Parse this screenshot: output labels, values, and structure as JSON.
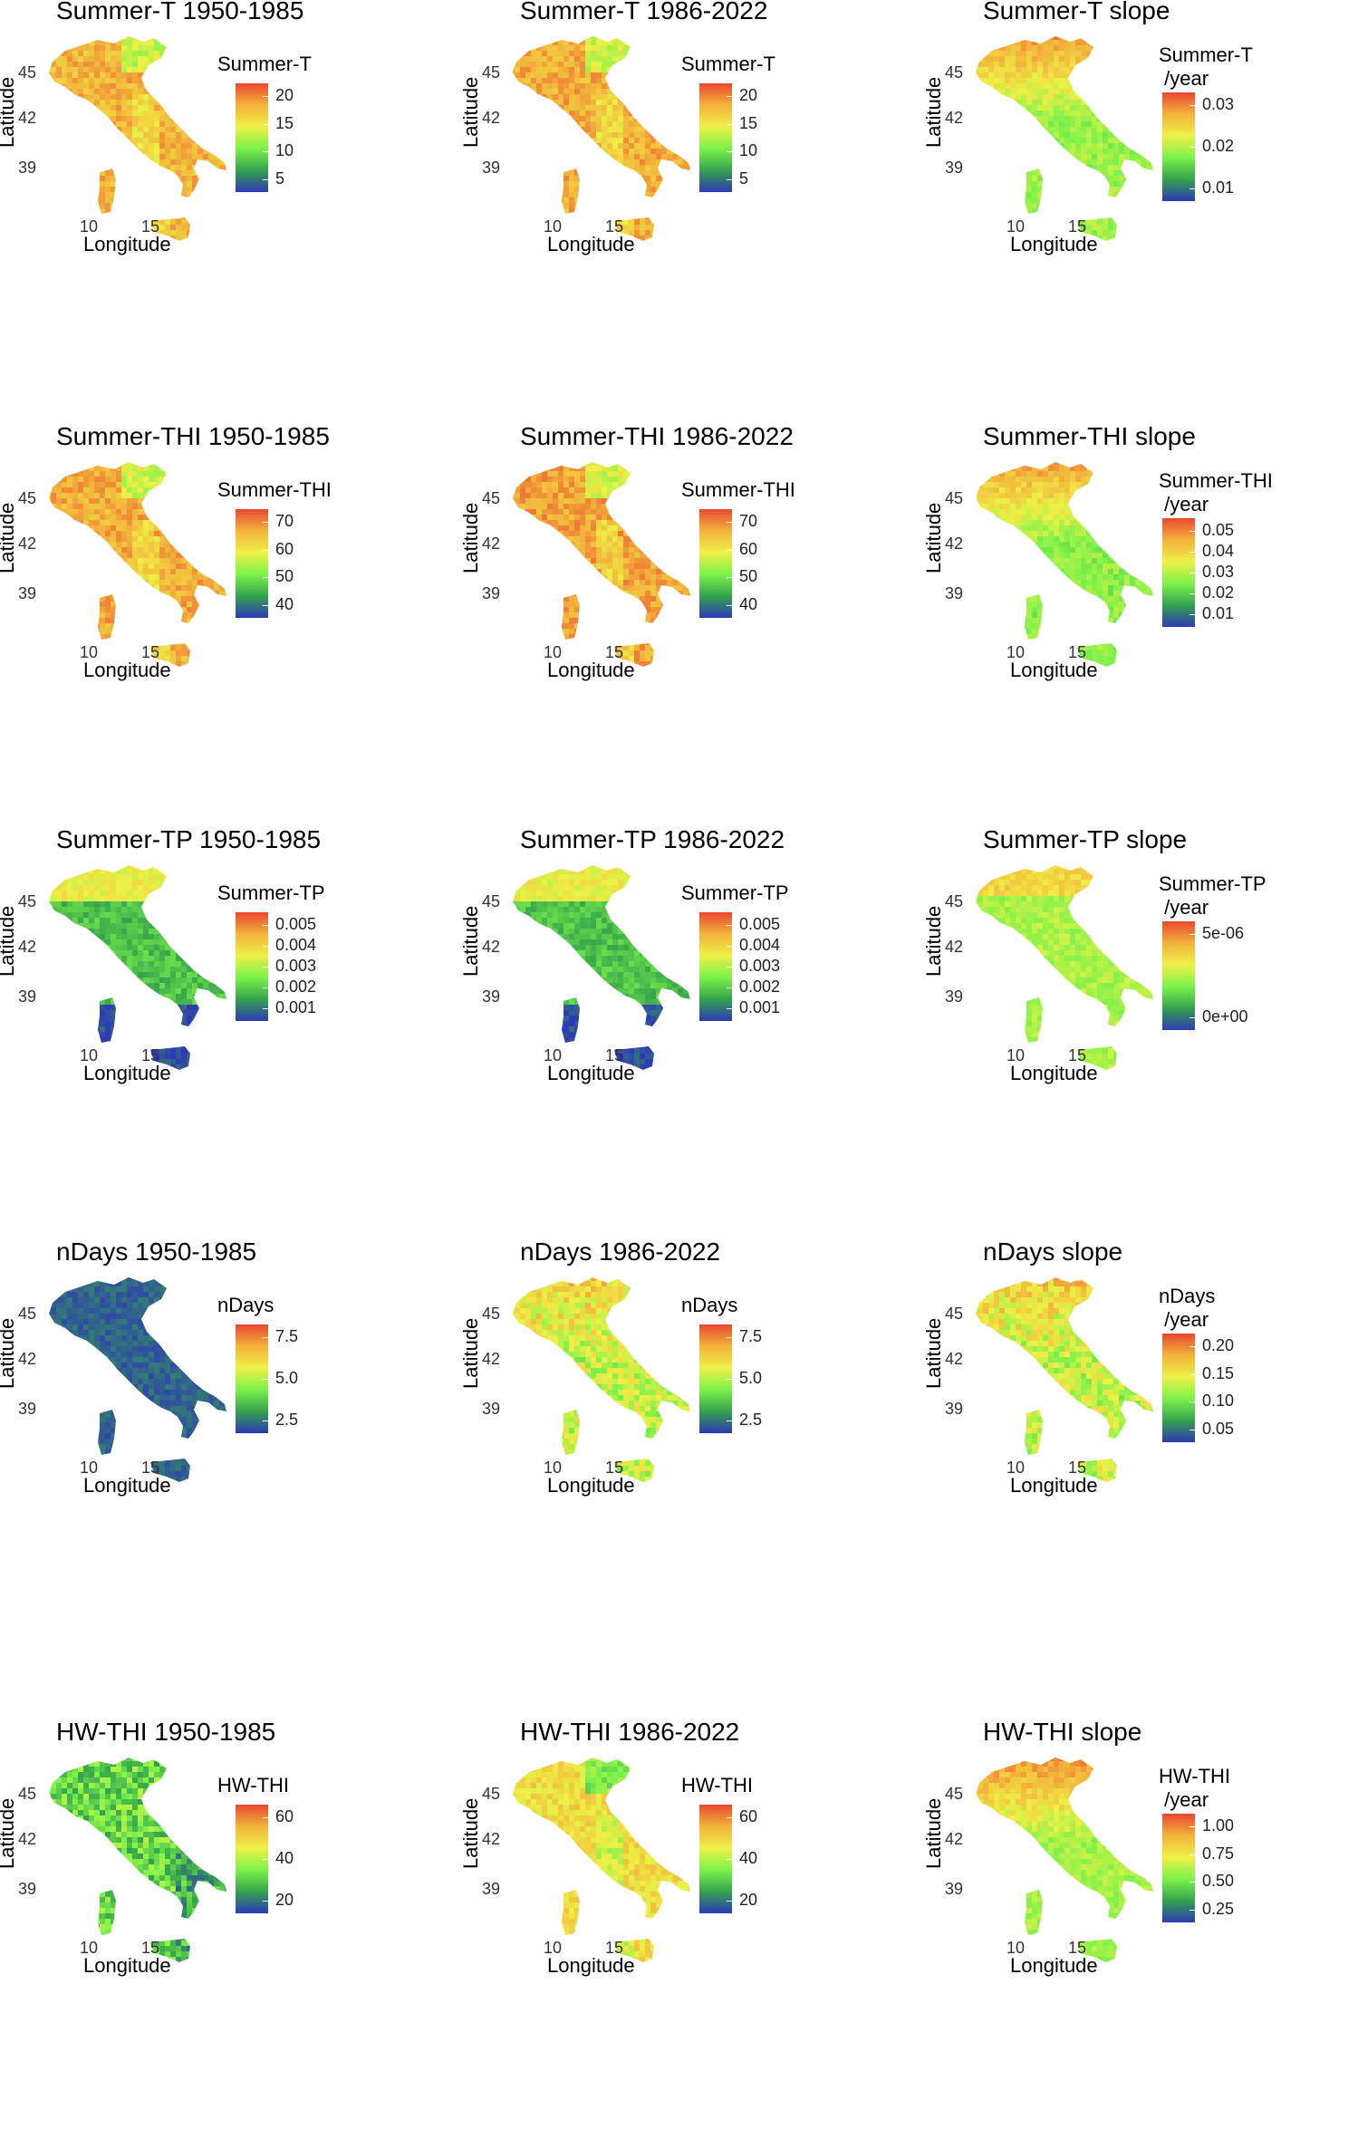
{
  "axes": {
    "x_title": "Longitude",
    "y_title": "Latitude",
    "x_ticks": [
      "10",
      "15"
    ],
    "y_ticks": [
      "45",
      "42",
      "39"
    ]
  },
  "palette": [
    "#2e3ab6",
    "#34a24c",
    "#7cf24a",
    "#eef046",
    "#f3b23b",
    "#e94730"
  ],
  "chart_data": [
    {
      "type": "heatmap",
      "title": "Summer-T 1950-1985",
      "legend_title": "Summer-T",
      "legend_ticks": [
        "20",
        "15",
        "10",
        "5"
      ],
      "field": "temperature",
      "level": 0.78
    },
    {
      "type": "heatmap",
      "title": "Summer-T 1986-2022",
      "legend_title": "Summer-T",
      "legend_ticks": [
        "20",
        "15",
        "10",
        "5"
      ],
      "field": "temperature",
      "level": 0.8
    },
    {
      "type": "heatmap",
      "title": "Summer-T slope",
      "legend_title": "Summer-T\n /year",
      "legend_ticks": [
        "0.03",
        "0.02",
        "0.01"
      ],
      "field": "slope-north",
      "level": 0.6
    },
    {
      "type": "heatmap",
      "title": "Summer-THI 1950-1985",
      "legend_title": "Summer-THI",
      "legend_ticks": [
        "70",
        "60",
        "50",
        "40"
      ],
      "field": "temperature",
      "level": 0.8
    },
    {
      "type": "heatmap",
      "title": "Summer-THI 1986-2022",
      "legend_title": "Summer-THI",
      "legend_ticks": [
        "70",
        "60",
        "50",
        "40"
      ],
      "field": "temperature",
      "level": 0.82
    },
    {
      "type": "heatmap",
      "title": "Summer-THI slope",
      "legend_title": "Summer-THI\n /year",
      "legend_ticks": [
        "0.05",
        "0.04",
        "0.03",
        "0.02",
        "0.01"
      ],
      "field": "slope-north",
      "level": 0.58
    },
    {
      "type": "heatmap",
      "title": "Summer-TP 1950-1985",
      "legend_title": "Summer-TP",
      "legend_ticks": [
        "0.005",
        "0.004",
        "0.003",
        "0.002",
        "0.001"
      ],
      "field": "precip",
      "level": 0.28
    },
    {
      "type": "heatmap",
      "title": "Summer-TP 1986-2022",
      "legend_title": "Summer-TP",
      "legend_ticks": [
        "0.005",
        "0.004",
        "0.003",
        "0.002",
        "0.001"
      ],
      "field": "precip",
      "level": 0.28
    },
    {
      "type": "heatmap",
      "title": "Summer-TP slope",
      "legend_title": "Summer-TP\n /year",
      "legend_ticks": [
        "5e-06",
        "0e+00"
      ],
      "field": "flat-green",
      "level": 0.48
    },
    {
      "type": "heatmap",
      "title": "nDays 1950-1985",
      "legend_title": "nDays",
      "legend_ticks": [
        "7.5",
        "5.0",
        "2.5"
      ],
      "field": "low",
      "level": 0.08
    },
    {
      "type": "heatmap",
      "title": "nDays 1986-2022",
      "legend_title": "nDays",
      "legend_ticks": [
        "7.5",
        "5.0",
        "2.5"
      ],
      "field": "mixed",
      "level": 0.52
    },
    {
      "type": "heatmap",
      "title": "nDays slope",
      "legend_title": "nDays\n /year",
      "legend_ticks": [
        "0.20",
        "0.15",
        "0.10",
        "0.05"
      ],
      "field": "mixed",
      "level": 0.52
    },
    {
      "type": "heatmap",
      "title": "HW-THI 1950-1985",
      "legend_title": "HW-THI",
      "legend_ticks": [
        "60",
        "40",
        "20"
      ],
      "field": "low-green",
      "level": 0.35
    },
    {
      "type": "heatmap",
      "title": "HW-THI 1986-2022",
      "legend_title": "HW-THI",
      "legend_ticks": [
        "60",
        "40",
        "20"
      ],
      "field": "temperature",
      "level": 0.66
    },
    {
      "type": "heatmap",
      "title": "HW-THI slope",
      "legend_title": "HW-THI\n /year",
      "legend_ticks": [
        "1.00",
        "0.75",
        "0.50",
        "0.25"
      ],
      "field": "slope-north",
      "level": 0.62
    }
  ]
}
